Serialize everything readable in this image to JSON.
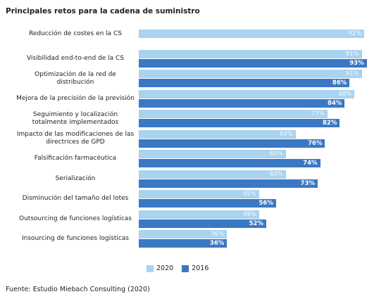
{
  "chart_data": {
    "type": "bar",
    "orientation": "horizontal",
    "title": "Principales retos para la cadena de suministro",
    "categories": [
      "Reducción de costes en la CS",
      "Visibilidad end-to-end de la CS",
      "Optimización de la red de distribución",
      "Mejora de la precisión de la previsión",
      "Seguimiento y localización totalmente implementados",
      "Impacto de las modificaciones de las directrices de GPD",
      "Falsificación farmacéutica",
      "Serialización",
      "Disminución del tamaño del lotes",
      "Outsourcing de funciones logísticas",
      "Insourcing de funciones logísticas"
    ],
    "series": [
      {
        "name": "2020",
        "color": "#a8d3f1",
        "values": [
          92,
          91,
          91,
          88,
          77,
          64,
          60,
          60,
          49,
          49,
          36
        ],
        "value_labels": [
          "92%",
          "91%",
          "91%",
          "88%",
          "77%",
          "64%",
          "60%",
          "60%",
          "49%",
          "49%",
          "36%"
        ]
      },
      {
        "name": "2016",
        "color": "#3b78c3",
        "values": [
          null,
          93,
          86,
          84,
          82,
          76,
          74,
          73,
          56,
          52,
          36
        ],
        "value_labels": [
          null,
          "93%",
          "86%",
          "84%",
          "82%",
          "76%",
          "74%",
          "73%",
          "56%",
          "52%",
          "36%"
        ]
      }
    ],
    "xlim": [
      0,
      100
    ],
    "source": "Fuente: Estudio Miebach Consulting (2020)"
  }
}
